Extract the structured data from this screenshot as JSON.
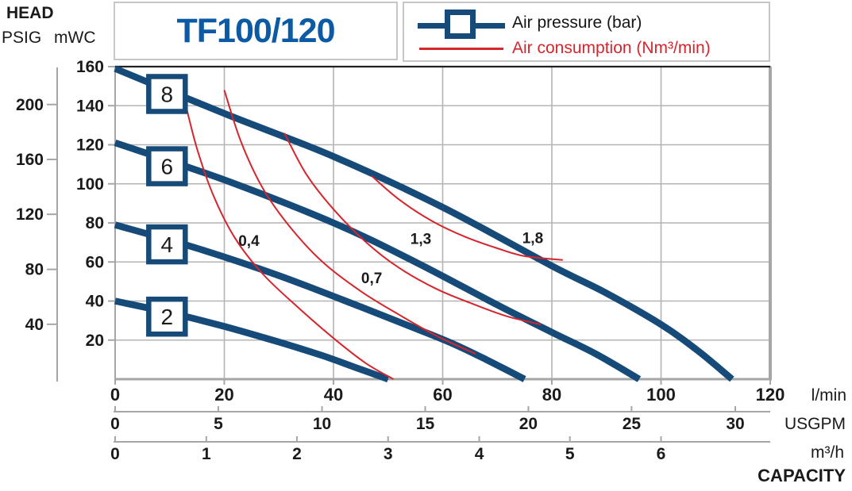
{
  "header": {
    "head": "HEAD",
    "psig": "PSIG",
    "mwc": "mWC",
    "title": "TF100/120"
  },
  "legend": {
    "pressure_label": "Air pressure (bar)",
    "consumption_label": "Air consumption (Nm³/min)"
  },
  "colors": {
    "curve_blue": "#164a78",
    "title_blue": "#0b5aa5",
    "red": "#d5262e",
    "grid": "#b4b4b4",
    "axis": "#a6a6a6",
    "dark_border": "#222222",
    "box_border": "#c6c6c6",
    "text": "#1a1a1a"
  },
  "axes": {
    "y_outer": {
      "name": "PSIG",
      "ticks": [
        200,
        160,
        120,
        80,
        40
      ],
      "mwc_positions": [
        140.6,
        112.5,
        84.4,
        56.2,
        28.1
      ]
    },
    "y_inner": {
      "name": "mWC",
      "ticks": [
        160,
        140,
        120,
        100,
        80,
        60,
        40,
        20
      ]
    },
    "x_primary": {
      "name": "l/min",
      "ticks": [
        0,
        20,
        40,
        60,
        80,
        100,
        120
      ]
    },
    "x_usgpm": {
      "name": "USGPM",
      "ticks": [
        0,
        5,
        10,
        15,
        20,
        25,
        30
      ],
      "lmin_positions": [
        0,
        18.9,
        37.9,
        56.8,
        75.7,
        94.6,
        113.6
      ]
    },
    "x_m3h": {
      "name": "m³/h",
      "ticks": [
        0,
        1,
        2,
        3,
        4,
        5,
        6
      ],
      "lmin_positions": [
        0,
        16.7,
        33.3,
        50,
        66.7,
        83.3,
        100
      ]
    },
    "capacity_label": "CAPACITY"
  },
  "chart_data": {
    "type": "line",
    "title": "TF100/120",
    "xlabel": "CAPACITY",
    "x_units": [
      "l/min",
      "USGPM",
      "m³/h"
    ],
    "ylabel": "HEAD",
    "y_units": [
      "PSIG",
      "mWC"
    ],
    "xlim": [
      0,
      120
    ],
    "ylim": [
      0,
      160
    ],
    "x_step": 20,
    "y_step": 20,
    "grid": true,
    "legend_position": "top",
    "series": [
      {
        "name": "Air pressure 8 bar",
        "kind": "pressure",
        "label": "8",
        "label_pos": [
          9.5,
          146
        ],
        "points": [
          [
            0,
            159
          ],
          [
            20,
            136
          ],
          [
            40,
            114
          ],
          [
            60,
            88
          ],
          [
            80,
            58
          ],
          [
            90,
            44
          ],
          [
            100,
            28
          ],
          [
            107,
            14
          ],
          [
            113,
            0
          ]
        ]
      },
      {
        "name": "Air pressure 6 bar",
        "kind": "pressure",
        "label": "6",
        "label_pos": [
          9.5,
          109
        ],
        "points": [
          [
            0,
            121
          ],
          [
            20,
            102
          ],
          [
            40,
            80
          ],
          [
            55,
            60
          ],
          [
            70,
            38
          ],
          [
            80,
            24
          ],
          [
            88,
            13
          ],
          [
            96,
            0
          ]
        ]
      },
      {
        "name": "Air pressure 4 bar",
        "kind": "pressure",
        "label": "4",
        "label_pos": [
          9.5,
          69
        ],
        "points": [
          [
            0,
            79
          ],
          [
            15,
            67
          ],
          [
            30,
            53
          ],
          [
            45,
            37
          ],
          [
            55,
            26
          ],
          [
            62,
            18
          ],
          [
            68,
            10
          ],
          [
            75,
            0
          ]
        ]
      },
      {
        "name": "Air pressure 2 bar",
        "kind": "pressure",
        "label": "2",
        "label_pos": [
          9.5,
          32
        ],
        "points": [
          [
            0,
            40
          ],
          [
            10,
            34
          ],
          [
            20,
            27
          ],
          [
            30,
            19
          ],
          [
            38,
            12
          ],
          [
            44,
            6
          ],
          [
            50,
            0
          ]
        ]
      },
      {
        "name": "Air consumption 0,4 Nm³/min",
        "kind": "consumption",
        "label": "0,4",
        "label_pos": [
          24.5,
          71
        ],
        "points": [
          [
            12.7,
            143
          ],
          [
            15,
            118
          ],
          [
            18,
            94
          ],
          [
            22,
            72
          ],
          [
            27,
            54
          ],
          [
            33,
            38
          ],
          [
            40,
            21
          ],
          [
            46,
            8
          ],
          [
            51,
            0
          ]
        ]
      },
      {
        "name": "Air consumption 0,7 Nm³/min",
        "kind": "consumption",
        "label": "0,7",
        "label_pos": [
          47,
          52
        ],
        "points": [
          [
            20,
            148
          ],
          [
            23,
            122
          ],
          [
            27,
            98
          ],
          [
            32,
            78
          ],
          [
            38,
            60
          ],
          [
            45,
            45
          ],
          [
            52,
            33
          ],
          [
            59,
            22
          ],
          [
            66,
            13
          ]
        ]
      },
      {
        "name": "Air consumption 1,3 Nm³/min",
        "kind": "consumption",
        "label": "1,3",
        "label_pos": [
          56,
          72
        ],
        "points": [
          [
            31,
            126
          ],
          [
            35,
            105
          ],
          [
            40,
            87
          ],
          [
            46,
            70
          ],
          [
            52,
            57
          ],
          [
            59,
            46
          ],
          [
            66,
            38
          ],
          [
            72,
            32
          ],
          [
            78,
            28
          ]
        ]
      },
      {
        "name": "Air consumption 1,8 Nm³/min",
        "kind": "consumption",
        "label": "1,8",
        "label_pos": [
          76.5,
          72.5
        ],
        "points": [
          [
            47,
            104
          ],
          [
            52,
            92
          ],
          [
            58,
            81
          ],
          [
            64,
            73
          ],
          [
            70,
            67
          ],
          [
            75,
            63
          ],
          [
            82,
            61
          ]
        ]
      }
    ]
  }
}
